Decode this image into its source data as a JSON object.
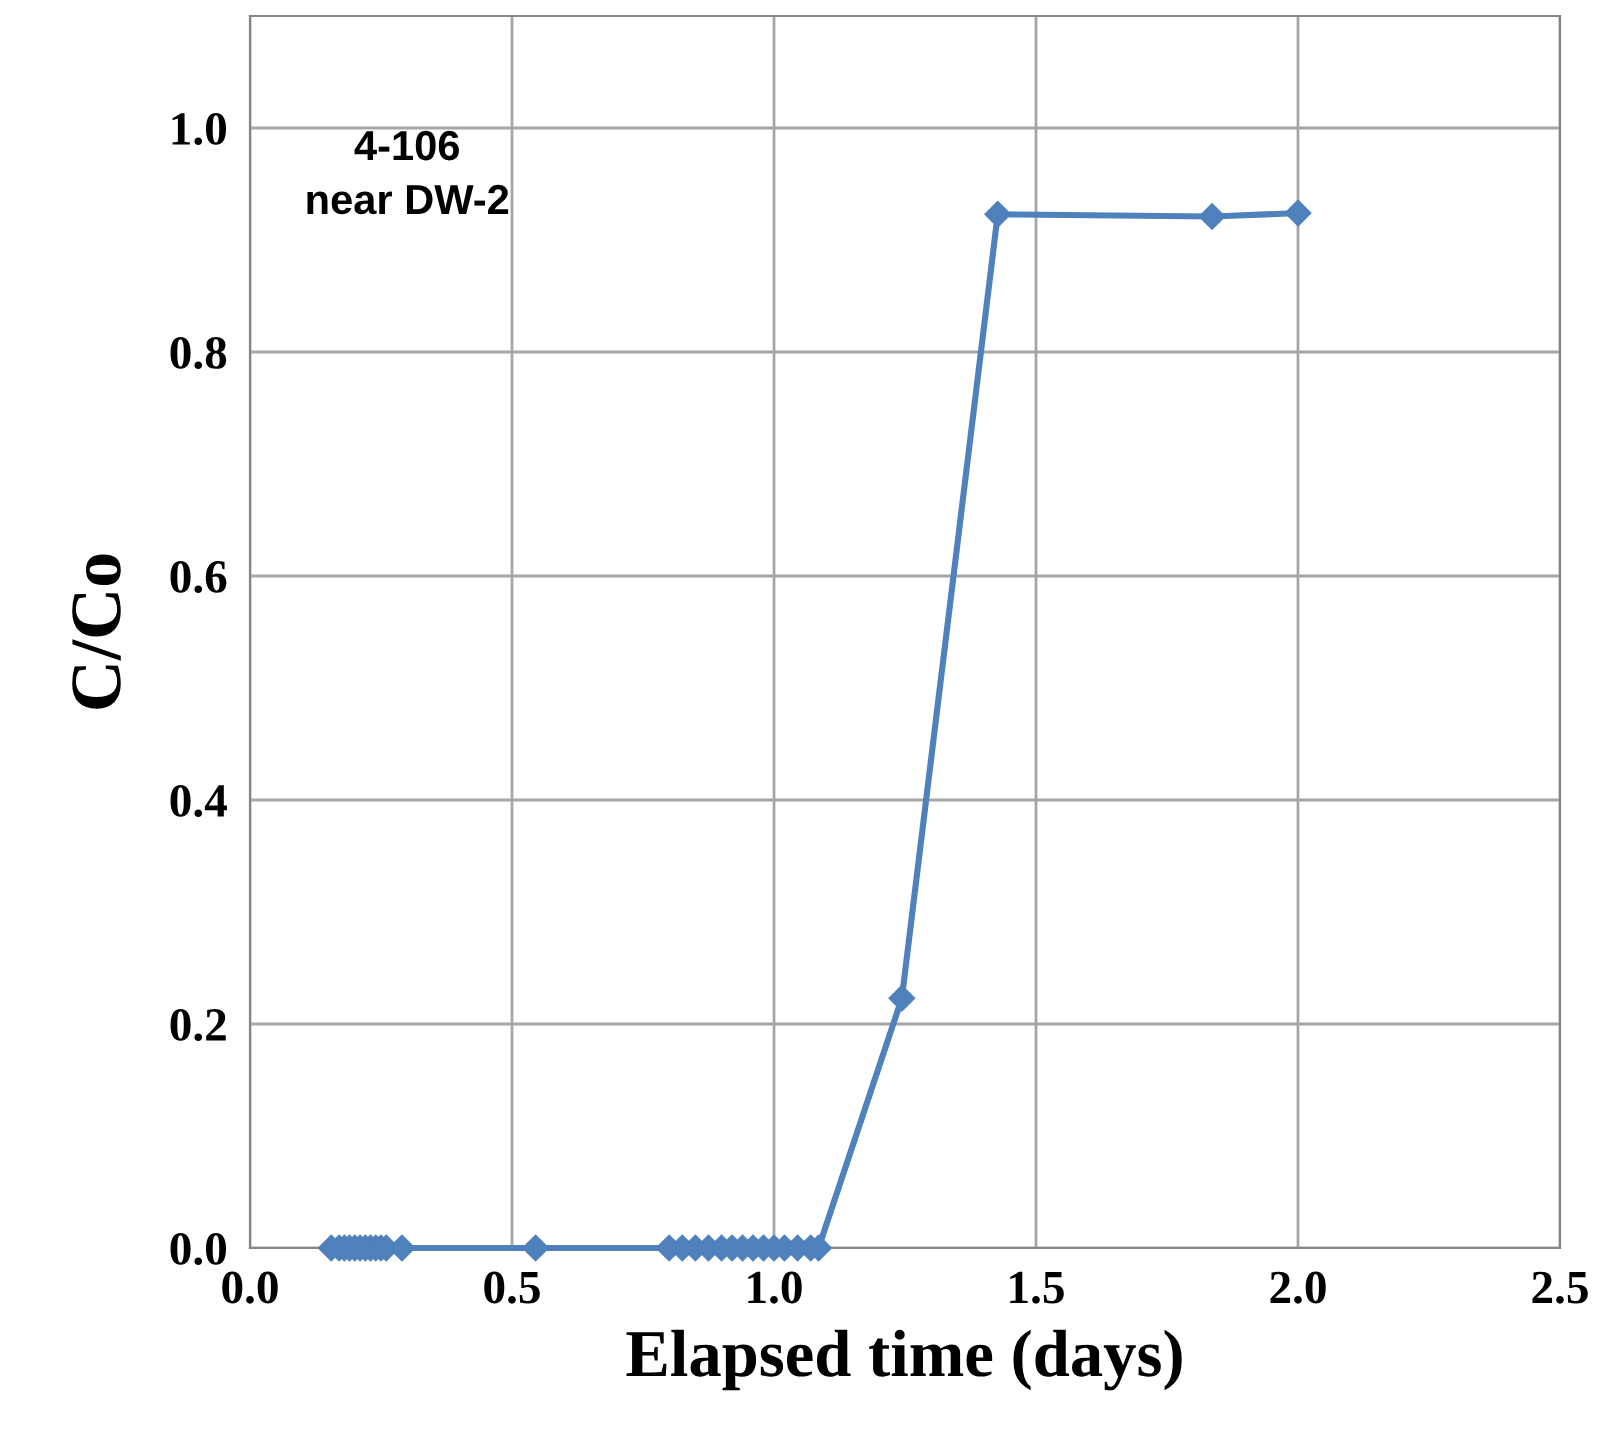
{
  "chart_data": {
    "type": "line",
    "xlabel": "Elapsed time (days)",
    "ylabel": "C/Co",
    "annotations": [
      "4-106\nnear DW-2"
    ],
    "x": [
      0.155,
      0.17,
      0.18,
      0.19,
      0.2,
      0.21,
      0.22,
      0.23,
      0.24,
      0.25,
      0.26,
      0.29,
      0.545,
      0.8,
      0.825,
      0.85,
      0.875,
      0.9,
      0.92,
      0.94,
      0.96,
      0.98,
      1.0,
      1.02,
      1.045,
      1.07,
      1.085,
      1.244,
      1.427,
      1.836,
      2.0
    ],
    "series": [
      {
        "color": "#4f81bd",
        "values": [
          0,
          0,
          0,
          0,
          0,
          0,
          0,
          0,
          0,
          0,
          0,
          0,
          0,
          0,
          0,
          0,
          0,
          0,
          0,
          0,
          0,
          0,
          0,
          0,
          0,
          0,
          0,
          0.223,
          0.923,
          0.921,
          0.924
        ]
      }
    ],
    "xlim": [
      0,
      2.5
    ],
    "xticks": [
      {
        "value": 0,
        "label": "0.0"
      },
      0.5,
      {
        "value": 1,
        "label": "1.0"
      },
      1.5,
      {
        "value": 2,
        "label": "2.0"
      },
      2.5
    ],
    "ylim": [
      0,
      1.1
    ],
    "yticks": [
      {
        "value": 0,
        "label": "0.0"
      },
      0.2,
      0.4,
      0.6,
      0.8,
      {
        "value": 1,
        "label": "1.0"
      }
    ],
    "grid": true,
    "marker": "diamond",
    "line_style": "solid"
  }
}
